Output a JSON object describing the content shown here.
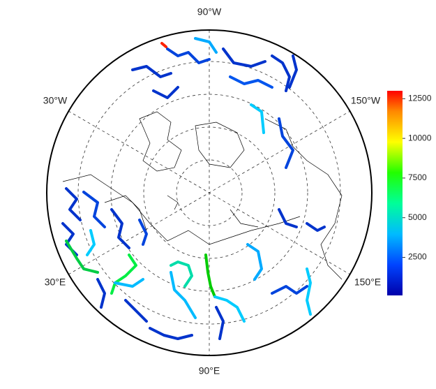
{
  "map": {
    "longitude_labels": [
      "90°W",
      "30°W",
      "150°W",
      "30°E",
      "150°E",
      "90°E"
    ]
  },
  "colorbar": {
    "lim": [
      100,
      13000
    ],
    "ticks": [
      2500,
      5000,
      7500,
      10000,
      12500
    ]
  }
}
